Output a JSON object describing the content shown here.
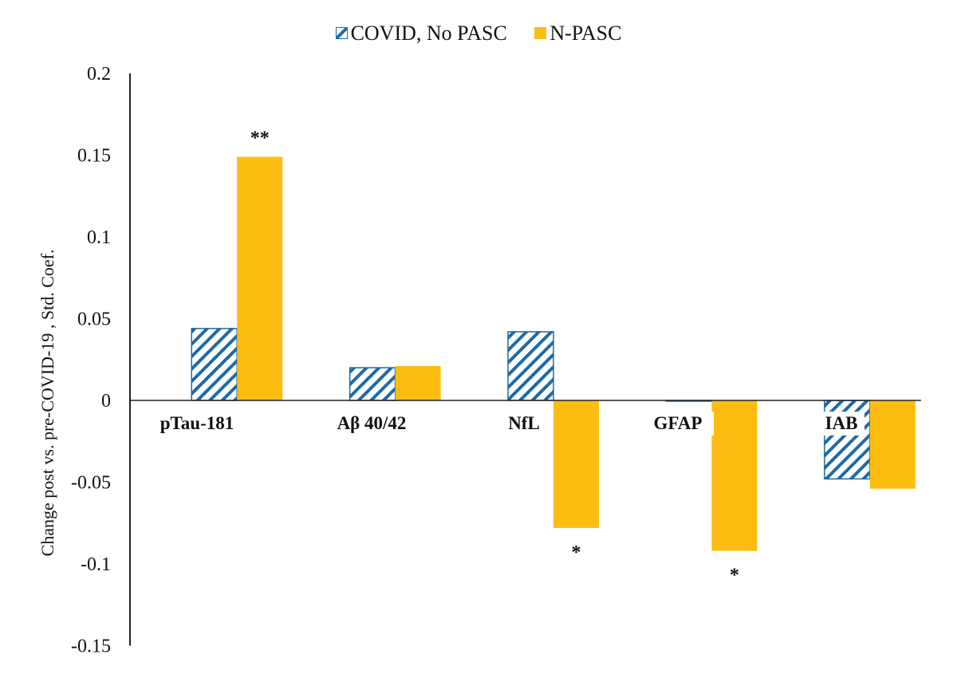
{
  "chart_data": {
    "type": "bar",
    "title": "",
    "xlabel": "",
    "ylabel": "Change post vs. pre-COVID-19 , Std. Coef.",
    "ylim": [
      -0.15,
      0.2
    ],
    "yticks": [
      0.2,
      0.15,
      0.1,
      0.05,
      0,
      -0.05,
      -0.1,
      -0.15
    ],
    "ytick_labels": [
      "0.2",
      "0.15",
      "0.1",
      "0.05",
      "0",
      "-0.05",
      "-0.1",
      "-0.15"
    ],
    "grid": false,
    "legend_position": "top",
    "categories": [
      "pTau-181",
      "Aβ 40/42",
      "NfL",
      "GFAP",
      "IAB"
    ],
    "series": [
      {
        "name": "COVID, No PASC",
        "color": "#1f6aa5",
        "pattern": "diagonal-hatch",
        "values": [
          0.044,
          0.02,
          0.042,
          0.0,
          -0.048
        ]
      },
      {
        "name": "N-PASC",
        "color": "#fdbd10",
        "pattern": "solid",
        "values": [
          0.149,
          0.021,
          -0.078,
          -0.092,
          -0.054
        ]
      }
    ],
    "annotations": [
      {
        "category": "pTau-181",
        "series": "N-PASC",
        "text": "**"
      },
      {
        "category": "NfL",
        "series": "N-PASC",
        "text": "*"
      },
      {
        "category": "GFAP",
        "series": "N-PASC",
        "text": "*"
      }
    ]
  },
  "legend": {
    "items": [
      {
        "label": "COVID, No PASC"
      },
      {
        "label": "N-PASC"
      }
    ]
  },
  "axis": {
    "ylabel": "Change post vs. pre-COVID-19 , Std. Coef."
  }
}
